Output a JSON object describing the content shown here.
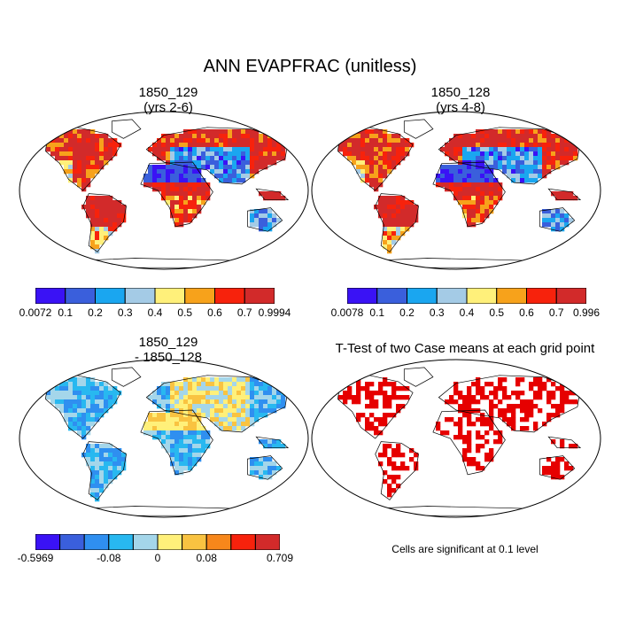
{
  "title": "ANN EVAPFRAC (unitless)",
  "panels": [
    {
      "id": "p1",
      "title_line1": "1850_129",
      "title_line2": "(yrs 2-6)"
    },
    {
      "id": "p2",
      "title_line1": "1850_128",
      "title_line2": "(yrs 4-8)"
    },
    {
      "id": "p3",
      "title_line1": "1850_129",
      "title_line2": "- 1850_128"
    },
    {
      "id": "p4",
      "title_line1": "T-Test of two Case means at each grid point",
      "title_line2": ""
    }
  ],
  "colorbars": [
    {
      "id": "cb1",
      "colors": [
        "#3a12f5",
        "#3a5fdc",
        "#1aa6f0",
        "#a4cbe6",
        "#fff07a",
        "#f7a21b",
        "#f7220c",
        "#d22a2a"
      ],
      "labels": [
        "0.0072",
        "0.1",
        "0.2",
        "0.3",
        "0.4",
        "0.5",
        "0.6",
        "0.7",
        "0.9994"
      ]
    },
    {
      "id": "cb2",
      "colors": [
        "#3a12f5",
        "#3a5fdc",
        "#1aa6f0",
        "#a4cbe6",
        "#fff07a",
        "#f7a21b",
        "#f7220c",
        "#d22a2a"
      ],
      "labels": [
        "0.0078",
        "0.1",
        "0.2",
        "0.3",
        "0.4",
        "0.5",
        "0.6",
        "0.7",
        "0.996"
      ]
    },
    {
      "id": "cb3",
      "colors": [
        "#3a12f5",
        "#3a5fdc",
        "#2f8ff0",
        "#28b8f0",
        "#a4d6ea",
        "#fff07a",
        "#f9c341",
        "#f7871b",
        "#f7220c",
        "#d22a2a"
      ],
      "labels": [
        "-0.5969",
        "-0.08",
        "0",
        "0.08",
        "0.709"
      ],
      "label_positions": [
        0,
        3,
        5,
        7,
        10
      ]
    }
  ],
  "note": "Cells are significant at 0.1 level",
  "colors": {
    "sig": "#e60000",
    "coast": "#000000"
  }
}
